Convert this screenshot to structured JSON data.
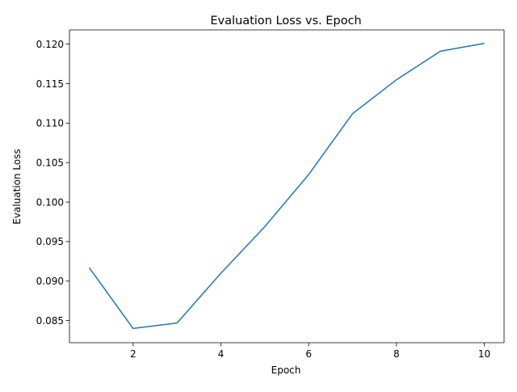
{
  "chart_data": {
    "type": "line",
    "title": "Evaluation Loss vs. Epoch",
    "xlabel": "Epoch",
    "ylabel": "Evaluation Loss",
    "xlim": [
      0.55,
      10.45
    ],
    "ylim": [
      0.0822,
      0.1218
    ],
    "xticks": [
      2,
      4,
      6,
      8,
      10
    ],
    "xtick_labels": [
      "2",
      "4",
      "6",
      "8",
      "10"
    ],
    "yticks": [
      0.085,
      0.09,
      0.095,
      0.1,
      0.105,
      0.11,
      0.115,
      0.12
    ],
    "ytick_labels": [
      "0.085",
      "0.090",
      "0.095",
      "0.100",
      "0.105",
      "0.110",
      "0.115",
      "0.120"
    ],
    "grid": false,
    "legend": "none",
    "series": [
      {
        "color": "#1f77b4",
        "x": [
          1,
          2,
          3,
          4,
          5,
          6,
          7,
          8,
          9,
          10
        ],
        "y": [
          0.0917,
          0.084,
          0.0847,
          0.091,
          0.0969,
          0.1035,
          0.1112,
          0.1155,
          0.1191,
          0.1201
        ]
      }
    ]
  }
}
